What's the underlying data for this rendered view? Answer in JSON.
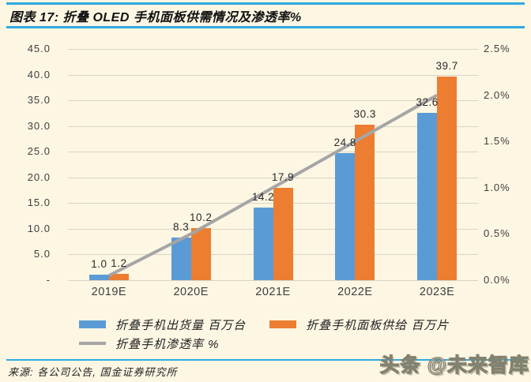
{
  "header": {
    "title": "图表 17: 折叠 OLED 手机面板供需情况及渗透率%"
  },
  "chart_data": {
    "type": "bar",
    "title": "图表 17: 折叠 OLED 手机面板供需情况及渗透率%",
    "categories": [
      "2019E",
      "2020E",
      "2021E",
      "2022E",
      "2023E"
    ],
    "series": [
      {
        "name": "折叠手机出货量 百万台",
        "type": "bar",
        "axis": "left",
        "color": "#5B9BD5",
        "values": [
          1.0,
          8.3,
          14.2,
          24.8,
          32.6
        ],
        "value_labels": [
          "1.0",
          "8.3",
          "14.2",
          "24.8",
          "32.6"
        ]
      },
      {
        "name": "折叠手机面板供给 百万片",
        "type": "bar",
        "axis": "left",
        "color": "#ED7D31",
        "values": [
          1.2,
          10.2,
          17.9,
          30.3,
          39.7
        ],
        "value_labels": [
          "1.2",
          "10.2",
          "17.9",
          "30.3",
          "39.7"
        ]
      },
      {
        "name": "折叠手机渗透率 %",
        "type": "line",
        "axis": "right",
        "color": "#A5A5A5",
        "values": [
          0.05,
          0.5,
          1.0,
          1.5,
          2.0
        ]
      }
    ],
    "left_axis": {
      "min": 0,
      "max": 45,
      "tick_step": 5,
      "tick_labels_top_to_bottom": [
        "45.0",
        "40.0",
        "35.0",
        "30.0",
        "25.0",
        "20.0",
        "15.0",
        "10.0",
        "5.0",
        "-"
      ]
    },
    "right_axis": {
      "min": 0,
      "max": 2.5,
      "tick_step": 0.5,
      "tick_labels_top_to_bottom": [
        "2.5%",
        "2.0%",
        "1.5%",
        "1.0%",
        "0.5%",
        "0.0%"
      ]
    },
    "grid": true,
    "legend_position": "bottom",
    "data_labels": true
  },
  "footer": {
    "source": "来源: 各公司公告, 国金证券研究所",
    "watermark": "头条 @未来智库"
  },
  "colors": {
    "background": "#FCF6E3",
    "rule_blue": "#2EA9DF",
    "grid": "#D9D4C5",
    "bar_blue": "#5B9BD5",
    "bar_orange": "#ED7D31",
    "line_gray": "#A5A5A5",
    "text_dark": "#3F3F3F"
  }
}
